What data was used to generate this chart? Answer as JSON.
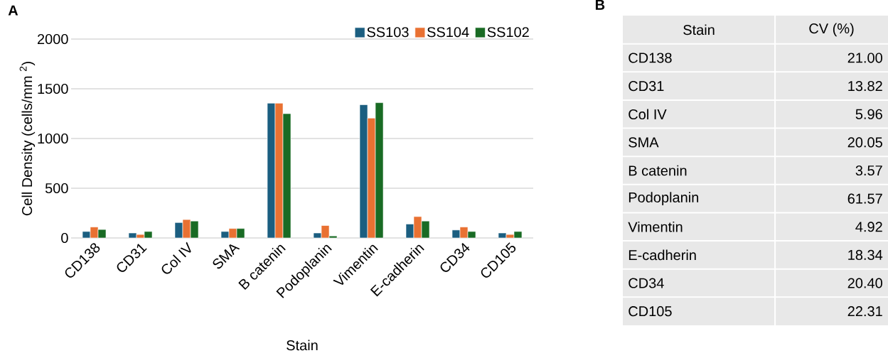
{
  "chart_data": [
    {
      "type": "bar",
      "title": "A",
      "xlabel": "Stain",
      "ylabel": "Cell Density (cells/mm $^{2}$)",
      "categories": [
        "CD138",
        "CD31",
        "Col IV",
        "SMA",
        "B catenin",
        "Podoplanin",
        "Vimentin",
        "E-cadherin",
        "CD34",
        "CD105"
      ],
      "series": [
        {
          "name": "SS103",
          "color": "#1b5e80",
          "values": [
            65,
            50,
            155,
            65,
            1355,
            50,
            1340,
            140,
            80,
            50
          ]
        },
        {
          "name": "SS104",
          "color": "#e97132",
          "values": [
            110,
            35,
            185,
            95,
            1355,
            125,
            1205,
            215,
            110,
            35
          ]
        },
        {
          "name": "SS102",
          "color": "#196b24",
          "values": [
            85,
            65,
            170,
            95,
            1250,
            20,
            1360,
            170,
            65,
            65
          ]
        }
      ],
      "ylim": [
        0,
        2000
      ],
      "yticks": [
        0,
        500,
        1000,
        1500,
        2000
      ],
      "grid": "y",
      "legend": "top right"
    },
    {
      "type": "other",
      "title": "B",
      "xlabel": "Stain",
      "ylabel": "CV (%)",
      "categories": [
        "CD138",
        "CD31",
        "Col IV",
        "SMA",
        "B catenin",
        "Podoplanin",
        "Vimentin",
        "E-cadherin",
        "CD34",
        "CD105"
      ],
      "value_labels": [
        "21.00",
        "13.82",
        "5.96",
        "20.05",
        "3.57",
        "61.57",
        "4.92",
        "18.34",
        "20.40",
        "22.31"
      ]
    }
  ]
}
